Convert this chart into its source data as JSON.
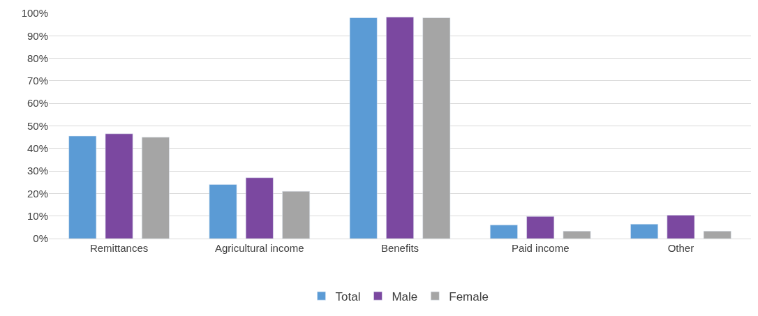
{
  "chart_data": {
    "type": "bar",
    "categories": [
      "Remittances",
      "Agricultural income",
      "Benefits",
      "Paid income",
      "Other"
    ],
    "series": [
      {
        "name": "Total",
        "color": "#5b9bd5",
        "values": [
          45.5,
          24,
          98,
          6,
          6.4
        ]
      },
      {
        "name": "Male",
        "color": "#7b48a0",
        "values": [
          46.5,
          27,
          98.3,
          9.8,
          10.4
        ]
      },
      {
        "name": "Female",
        "color": "#a5a5a5",
        "values": [
          45,
          21,
          98,
          3.3,
          3.3
        ]
      }
    ],
    "ylim": [
      0,
      100
    ],
    "yticks": [
      {
        "value": 0,
        "label": "0%"
      },
      {
        "value": 10,
        "label": "10%"
      },
      {
        "value": 20,
        "label": "20%"
      },
      {
        "value": 30,
        "label": "30%"
      },
      {
        "value": 40,
        "label": "40%"
      },
      {
        "value": 50,
        "label": "50%"
      },
      {
        "value": 60,
        "label": "60%"
      },
      {
        "value": 70,
        "label": "70%"
      },
      {
        "value": 80,
        "label": "80%"
      },
      {
        "value": 90,
        "label": "90%"
      },
      {
        "value": 100,
        "label": "100%"
      }
    ],
    "grid": "y",
    "legend": "bottom"
  }
}
